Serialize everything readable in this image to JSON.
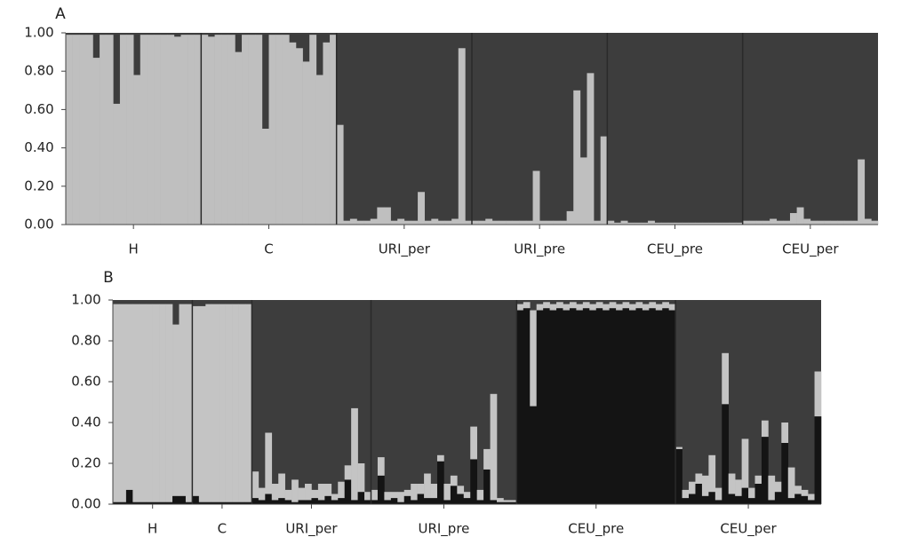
{
  "chart_data": [
    {
      "type": "structure",
      "title": "A",
      "colors": {
        "light": "#bfbfbf",
        "dark": "#3d3d3d"
      },
      "ylim": [
        0,
        1
      ],
      "yticks": [
        {
          "value": 0,
          "label": "0.00"
        },
        {
          "value": 0.2,
          "label": "0.20"
        },
        {
          "value": 0.4,
          "label": "0.40"
        },
        {
          "value": 0.6,
          "label": "0.60"
        },
        {
          "value": 0.8,
          "label": "0.80"
        },
        {
          "value": 1,
          "label": "1.00"
        }
      ],
      "groups": [
        {
          "label": "H",
          "light": [
            0.99,
            0.99,
            0.99,
            0.99,
            0.87,
            0.99,
            0.99,
            0.63,
            0.99,
            0.99,
            0.78,
            0.99,
            0.99,
            0.99,
            0.99,
            0.99,
            0.98,
            0.99,
            0.99,
            0.99
          ]
        },
        {
          "label": "C",
          "light": [
            0.99,
            0.98,
            0.99,
            0.99,
            0.99,
            0.9,
            0.99,
            0.99,
            0.99,
            0.5,
            0.99,
            0.99,
            0.99,
            0.95,
            0.92,
            0.85,
            0.99,
            0.78,
            0.95,
            0.99
          ]
        },
        {
          "label": "URI_per",
          "light": [
            0.52,
            0.02,
            0.03,
            0.02,
            0.02,
            0.03,
            0.09,
            0.09,
            0.02,
            0.03,
            0.02,
            0.02,
            0.17,
            0.02,
            0.03,
            0.02,
            0.02,
            0.03,
            0.92,
            0.02
          ]
        },
        {
          "label": "URI_pre",
          "light": [
            0.02,
            0.02,
            0.03,
            0.02,
            0.02,
            0.02,
            0.02,
            0.02,
            0.02,
            0.28,
            0.02,
            0.02,
            0.02,
            0.02,
            0.07,
            0.7,
            0.35,
            0.79,
            0.02,
            0.46
          ]
        },
        {
          "label": "CEU_pre",
          "light": [
            0.02,
            0.01,
            0.02,
            0.01,
            0.01,
            0.01,
            0.02,
            0.01,
            0.01,
            0.01,
            0.01,
            0.01,
            0.01,
            0.01,
            0.01,
            0.01,
            0.01,
            0.01,
            0.01,
            0.01
          ]
        },
        {
          "label": "CEU_per",
          "light": [
            0.02,
            0.02,
            0.02,
            0.02,
            0.03,
            0.02,
            0.02,
            0.06,
            0.09,
            0.03,
            0.02,
            0.02,
            0.02,
            0.02,
            0.02,
            0.02,
            0.02,
            0.34,
            0.03,
            0.02
          ]
        }
      ]
    },
    {
      "type": "structure",
      "title": "B",
      "colors": {
        "black": "#141414",
        "light": "#c4c4c4",
        "dark": "#3d3d3d"
      },
      "ylim": [
        0,
        1
      ],
      "yticks": [
        {
          "value": 0,
          "label": "0.00"
        },
        {
          "value": 0.2,
          "label": "0.20"
        },
        {
          "value": 0.4,
          "label": "0.40"
        },
        {
          "value": 0.6,
          "label": "0.60"
        },
        {
          "value": 0.8,
          "label": "0.80"
        },
        {
          "value": 1,
          "label": "1.00"
        }
      ],
      "groups": [
        {
          "label": "H",
          "black": [
            0.01,
            0.01,
            0.07,
            0.01,
            0.01,
            0.01,
            0.01,
            0.01,
            0.01,
            0.04,
            0.04,
            0.01
          ],
          "light": [
            0.97,
            0.97,
            0.91,
            0.97,
            0.97,
            0.97,
            0.97,
            0.97,
            0.97,
            0.84,
            0.94,
            0.97
          ]
        },
        {
          "label": "C",
          "black": [
            0.04,
            0.01,
            0.01,
            0.01,
            0.01,
            0.01,
            0.01,
            0.01,
            0.01
          ],
          "light": [
            0.93,
            0.96,
            0.97,
            0.97,
            0.97,
            0.97,
            0.97,
            0.97,
            0.97
          ]
        },
        {
          "label": "URI_per",
          "black": [
            0.03,
            0.02,
            0.05,
            0.02,
            0.03,
            0.02,
            0.01,
            0.02,
            0.02,
            0.03,
            0.02,
            0.04,
            0.02,
            0.03,
            0.12,
            0.02,
            0.06,
            0.02
          ],
          "light": [
            0.13,
            0.06,
            0.3,
            0.08,
            0.12,
            0.05,
            0.11,
            0.06,
            0.08,
            0.04,
            0.08,
            0.06,
            0.03,
            0.08,
            0.07,
            0.45,
            0.14,
            0.04
          ]
        },
        {
          "label": "URI_pre",
          "black": [
            0.02,
            0.14,
            0.02,
            0.03,
            0.01,
            0.04,
            0.02,
            0.05,
            0.03,
            0.03,
            0.21,
            0.02,
            0.09,
            0.05,
            0.03,
            0.22,
            0.02,
            0.17,
            0.02,
            0.01,
            0.01,
            0.01
          ],
          "light": [
            0.05,
            0.09,
            0.04,
            0.03,
            0.05,
            0.03,
            0.08,
            0.05,
            0.12,
            0.07,
            0.03,
            0.08,
            0.05,
            0.04,
            0.03,
            0.16,
            0.05,
            0.1,
            0.52,
            0.02,
            0.01,
            0.01
          ]
        },
        {
          "label": "CEU_pre",
          "black": [
            0.95,
            0.96,
            0.48,
            0.95,
            0.96,
            0.95,
            0.96,
            0.95,
            0.96,
            0.95,
            0.96,
            0.95,
            0.96,
            0.95,
            0.96,
            0.95,
            0.96,
            0.95,
            0.96,
            0.95,
            0.96,
            0.95,
            0.96,
            0.95
          ],
          "light": [
            0.03,
            0.03,
            0.47,
            0.03,
            0.03,
            0.03,
            0.03,
            0.03,
            0.03,
            0.03,
            0.03,
            0.03,
            0.03,
            0.03,
            0.03,
            0.03,
            0.03,
            0.03,
            0.03,
            0.03,
            0.03,
            0.03,
            0.03,
            0.03
          ]
        },
        {
          "label": "CEU_per",
          "black": [
            0.27,
            0.03,
            0.05,
            0.1,
            0.04,
            0.06,
            0.02,
            0.49,
            0.05,
            0.04,
            0.08,
            0.03,
            0.1,
            0.33,
            0.02,
            0.06,
            0.3,
            0.03,
            0.05,
            0.04,
            0.02,
            0.43
          ],
          "light": [
            0.01,
            0.04,
            0.06,
            0.05,
            0.1,
            0.18,
            0.06,
            0.25,
            0.1,
            0.08,
            0.24,
            0.05,
            0.04,
            0.08,
            0.12,
            0.05,
            0.1,
            0.15,
            0.04,
            0.03,
            0.03,
            0.22
          ]
        }
      ]
    }
  ]
}
